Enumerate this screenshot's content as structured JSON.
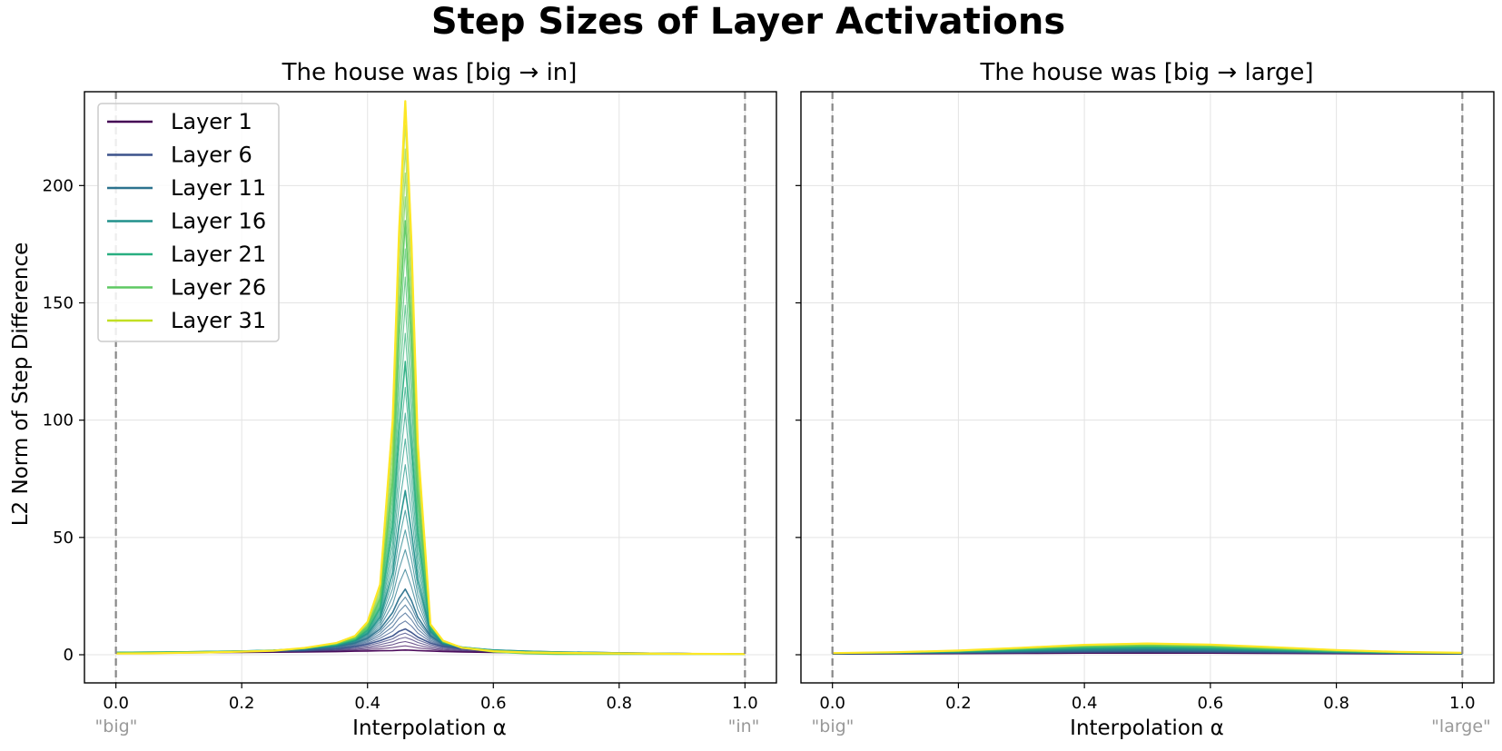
{
  "chart_data": {
    "type": "line",
    "title": "Step Sizes of Layer Activations",
    "ylabel": "L2 Norm of Step Difference",
    "ylim": [
      -12,
      240
    ],
    "yticks": [
      0,
      50,
      100,
      150,
      200
    ],
    "shared_y": true,
    "legend": {
      "location": "top-left",
      "entries": [
        "Layer 1",
        "Layer 6",
        "Layer 11",
        "Layer 16",
        "Layer 21",
        "Layer 26",
        "Layer 31"
      ],
      "colors": [
        "#440154",
        "#3b528b",
        "#2c728e",
        "#21918c",
        "#28ae80",
        "#5ec962",
        "#c2df23"
      ]
    },
    "panels": [
      {
        "title": "The house was [big → in]",
        "xlabel": "Interpolation α",
        "xlim": [
          -0.05,
          1.05
        ],
        "xticks": [
          "0.0",
          "0.2",
          "0.4",
          "0.6",
          "0.8",
          "1.0"
        ],
        "endpoint_labels": [
          "\"big\"",
          "\"in\""
        ],
        "peak_alpha": 0.46,
        "x": [
          0.0,
          0.05,
          0.1,
          0.15,
          0.2,
          0.25,
          0.3,
          0.35,
          0.38,
          0.4,
          0.42,
          0.44,
          0.45,
          0.46,
          0.47,
          0.48,
          0.5,
          0.52,
          0.55,
          0.6,
          0.65,
          0.7,
          0.8,
          0.9,
          1.0
        ],
        "series": [
          {
            "name": "Layer 1",
            "values": [
              0.6,
              0.7,
              0.8,
              0.9,
              1.0,
              1.1,
              1.2,
              1.3,
              1.5,
              1.6,
              1.7,
              1.8,
              1.9,
              2.0,
              1.9,
              1.8,
              1.6,
              1.4,
              1.2,
              1.0,
              0.9,
              0.8,
              0.7,
              0.5,
              0.3
            ]
          },
          {
            "name": "Layer 6",
            "values": [
              0.8,
              0.9,
              1.0,
              1.2,
              1.3,
              1.5,
              1.8,
              2.5,
              3.5,
              4.5,
              6.0,
              8.0,
              10.0,
              11.0,
              9.5,
              7.5,
              5.0,
              3.5,
              2.6,
              1.8,
              1.4,
              1.1,
              0.8,
              0.5,
              0.3
            ]
          },
          {
            "name": "Layer 11",
            "values": [
              0.9,
              1.0,
              1.1,
              1.3,
              1.5,
              1.8,
              2.2,
              3.5,
              5.0,
              7.0,
              11.0,
              18.0,
              24.0,
              28.0,
              23.0,
              16.0,
              8.0,
              4.5,
              3.0,
              2.0,
              1.5,
              1.2,
              0.8,
              0.5,
              0.3
            ]
          },
          {
            "name": "Layer 16",
            "values": [
              1.0,
              1.1,
              1.2,
              1.4,
              1.6,
              1.9,
              2.5,
              4.0,
              6.0,
              9.0,
              16.0,
              35.0,
              55.0,
              70.0,
              52.0,
              32.0,
              10.0,
              5.0,
              3.2,
              2.0,
              1.5,
              1.2,
              0.8,
              0.5,
              0.3
            ]
          },
          {
            "name": "Layer 21",
            "values": [
              1.0,
              1.1,
              1.2,
              1.4,
              1.6,
              1.9,
              2.7,
              4.3,
              6.5,
              10.5,
              20.0,
              55.0,
              95.0,
              125.0,
              90.0,
              52.0,
              11.5,
              5.5,
              3.3,
              1.8,
              1.3,
              1.0,
              0.6,
              0.4,
              0.2
            ]
          },
          {
            "name": "Layer 26",
            "values": [
              0.8,
              0.9,
              1.0,
              1.2,
              1.5,
              1.8,
              2.8,
              4.6,
              7.0,
              12.0,
              24.0,
              75.0,
              140.0,
              185.0,
              135.0,
              70.0,
              12.5,
              5.5,
              3.0,
              1.2,
              0.5,
              0.2,
              0.2,
              0.2,
              0.2
            ]
          },
          {
            "name": "Layer 31",
            "values": [
              0.5,
              0.6,
              0.8,
              1.0,
              1.3,
              1.7,
              2.9,
              5.0,
              8.0,
              14.0,
              30.0,
              100.0,
              180.0,
              236.0,
              175.0,
              90.0,
              13.0,
              6.0,
              3.0,
              1.5,
              1.0,
              0.8,
              0.6,
              0.4,
              0.3
            ]
          }
        ]
      },
      {
        "title": "The house was [big → large]",
        "xlabel": "Interpolation α",
        "xlim": [
          -0.05,
          1.05
        ],
        "xticks": [
          "0.0",
          "0.2",
          "0.4",
          "0.6",
          "0.8",
          "1.0"
        ],
        "endpoint_labels": [
          "\"big\"",
          "\"large\""
        ],
        "x": [
          0.0,
          0.1,
          0.2,
          0.3,
          0.4,
          0.5,
          0.6,
          0.7,
          0.8,
          0.9,
          1.0
        ],
        "series": [
          {
            "name": "Layer 1",
            "values": [
              0.3,
              0.4,
              0.5,
              0.6,
              0.7,
              0.7,
              0.7,
              0.6,
              0.5,
              0.4,
              0.3
            ]
          },
          {
            "name": "Layer 6",
            "values": [
              0.4,
              0.6,
              0.8,
              1.0,
              1.2,
              1.3,
              1.2,
              1.0,
              0.8,
              0.6,
              0.4
            ]
          },
          {
            "name": "Layer 11",
            "values": [
              0.5,
              0.7,
              1.0,
              1.4,
              1.8,
              2.0,
              1.8,
              1.4,
              1.0,
              0.7,
              0.5
            ]
          },
          {
            "name": "Layer 16",
            "values": [
              0.5,
              0.8,
              1.2,
              1.8,
              2.4,
              2.7,
              2.4,
              1.8,
              1.2,
              0.8,
              0.5
            ]
          },
          {
            "name": "Layer 21",
            "values": [
              0.6,
              0.9,
              1.4,
              2.2,
              3.0,
              3.4,
              3.0,
              2.2,
              1.4,
              0.9,
              0.6
            ]
          },
          {
            "name": "Layer 26",
            "values": [
              0.6,
              1.0,
              1.6,
              2.6,
              3.6,
              4.0,
              3.6,
              2.6,
              1.6,
              1.0,
              0.6
            ]
          },
          {
            "name": "Layer 31",
            "values": [
              0.7,
              1.1,
              1.8,
              3.0,
              4.2,
              4.8,
              4.3,
              3.2,
              2.0,
              1.2,
              0.8
            ]
          }
        ]
      }
    ]
  }
}
